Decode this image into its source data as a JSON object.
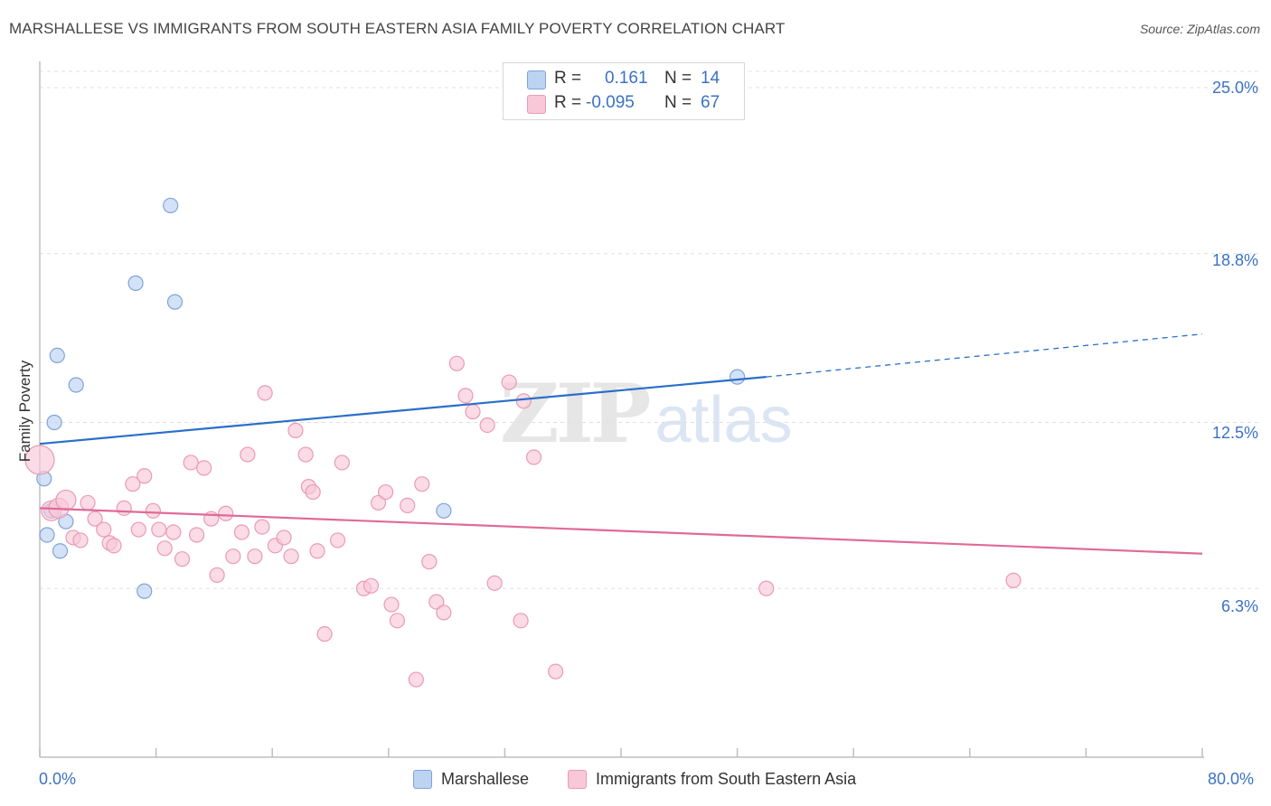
{
  "title": "MARSHALLESE VS IMMIGRANTS FROM SOUTH EASTERN ASIA FAMILY POVERTY CORRELATION CHART",
  "source": "Source: ZipAtlas.com",
  "watermark": {
    "zip": "ZIP",
    "atlas": "atlas"
  },
  "colors": {
    "blue_fill": "#bcd3f2",
    "blue_stroke": "#7fa3d8",
    "blue_line": "#2a6fc9",
    "pink_fill": "#f8c8d8",
    "pink_stroke": "#ea9ab4",
    "pink_line": "#e06a96",
    "grid": "#e0e0e0",
    "tick_text": "#3b72c4"
  },
  "legend_top": {
    "rows": [
      {
        "r_label": "R =",
        "r_value": "0.161",
        "n_label": "N =",
        "n_value": "14",
        "color": "#bcd3f2",
        "border": "#7fa3d8"
      },
      {
        "r_label": "R =",
        "r_value": "-0.095",
        "n_label": "N =",
        "n_value": "67",
        "color": "#f8c8d8",
        "border": "#ea9ab4"
      }
    ]
  },
  "legend_bottom": [
    {
      "label": "Marshallese",
      "color": "#bcd3f2",
      "border": "#7fa3d8"
    },
    {
      "label": "Immigrants from South Eastern Asia",
      "color": "#f8c8d8",
      "border": "#ea9ab4"
    }
  ],
  "chart_data": {
    "type": "scatter",
    "title": "MARSHALLESE VS IMMIGRANTS FROM SOUTH EASTERN ASIA FAMILY POVERTY CORRELATION CHART",
    "xlabel": "",
    "ylabel": "Family Poverty",
    "xlim": [
      0,
      80
    ],
    "ylim": [
      0,
      25.5
    ],
    "x_ticks": [
      0,
      8,
      16,
      24,
      32,
      40,
      48,
      56,
      64,
      72,
      80
    ],
    "x_tick_labels": {
      "start": "0.0%",
      "end": "80.0%"
    },
    "y_ticks": [
      6.3,
      12.5,
      18.8,
      25.0
    ],
    "y_tick_labels": [
      "6.3%",
      "12.5%",
      "18.8%",
      "25.0%"
    ],
    "grid": "horizontal dashed",
    "legend_placement": "top-center",
    "series": [
      {
        "name": "Marshallese",
        "r": 0.161,
        "n": 14,
        "points": [
          [
            9.0,
            20.6
          ],
          [
            6.6,
            17.7
          ],
          [
            9.3,
            17.0
          ],
          [
            1.2,
            15.0
          ],
          [
            2.5,
            13.9
          ],
          [
            1.0,
            12.5
          ],
          [
            0.3,
            10.4
          ],
          [
            0.8,
            9.2
          ],
          [
            1.8,
            8.8
          ],
          [
            0.5,
            8.3
          ],
          [
            1.4,
            7.7
          ],
          [
            7.2,
            6.2
          ],
          [
            27.8,
            9.2
          ],
          [
            48.0,
            14.2
          ]
        ],
        "trend": {
          "x0": 0,
          "y0": 11.7,
          "x1": 50,
          "y1": 14.2,
          "dashed_x1": 80,
          "dashed_y1": 15.8
        }
      },
      {
        "name": "Immigrants from South Eastern Asia",
        "r": -0.095,
        "n": 67,
        "points": [
          [
            0.0,
            11.1
          ],
          [
            0.8,
            9.2
          ],
          [
            1.3,
            9.3
          ],
          [
            1.8,
            9.6
          ],
          [
            2.3,
            8.2
          ],
          [
            2.8,
            8.1
          ],
          [
            3.3,
            9.5
          ],
          [
            3.8,
            8.9
          ],
          [
            4.4,
            8.5
          ],
          [
            4.8,
            8.0
          ],
          [
            5.1,
            7.9
          ],
          [
            5.8,
            9.3
          ],
          [
            6.4,
            10.2
          ],
          [
            6.8,
            8.5
          ],
          [
            7.2,
            10.5
          ],
          [
            7.8,
            9.2
          ],
          [
            8.2,
            8.5
          ],
          [
            8.6,
            7.8
          ],
          [
            9.2,
            8.4
          ],
          [
            9.8,
            7.4
          ],
          [
            10.4,
            11.0
          ],
          [
            10.8,
            8.3
          ],
          [
            11.3,
            10.8
          ],
          [
            11.8,
            8.9
          ],
          [
            12.2,
            6.8
          ],
          [
            12.8,
            9.1
          ],
          [
            13.3,
            7.5
          ],
          [
            13.9,
            8.4
          ],
          [
            14.3,
            11.3
          ],
          [
            14.8,
            7.5
          ],
          [
            15.3,
            8.6
          ],
          [
            15.5,
            13.6
          ],
          [
            16.2,
            7.9
          ],
          [
            16.8,
            8.2
          ],
          [
            17.3,
            7.5
          ],
          [
            17.6,
            12.2
          ],
          [
            18.3,
            11.3
          ],
          [
            18.5,
            10.1
          ],
          [
            18.8,
            9.9
          ],
          [
            19.1,
            7.7
          ],
          [
            19.6,
            4.6
          ],
          [
            20.8,
            11.0
          ],
          [
            20.5,
            8.1
          ],
          [
            22.3,
            6.3
          ],
          [
            22.8,
            6.4
          ],
          [
            23.3,
            9.5
          ],
          [
            23.8,
            9.9
          ],
          [
            24.2,
            5.7
          ],
          [
            24.6,
            5.1
          ],
          [
            25.3,
            9.4
          ],
          [
            25.9,
            2.9
          ],
          [
            26.3,
            10.2
          ],
          [
            26.8,
            7.3
          ],
          [
            27.3,
            5.8
          ],
          [
            27.8,
            5.4
          ],
          [
            28.7,
            14.7
          ],
          [
            29.3,
            13.5
          ],
          [
            29.8,
            12.9
          ],
          [
            30.8,
            12.4
          ],
          [
            31.3,
            6.5
          ],
          [
            32.3,
            14.0
          ],
          [
            33.1,
            5.1
          ],
          [
            33.3,
            13.3
          ],
          [
            34.0,
            11.2
          ],
          [
            35.5,
            3.2
          ],
          [
            50.0,
            6.3
          ],
          [
            67.0,
            6.6
          ]
        ],
        "trend": {
          "x0": 0,
          "y0": 9.3,
          "x1": 80,
          "y1": 7.6
        }
      }
    ]
  }
}
